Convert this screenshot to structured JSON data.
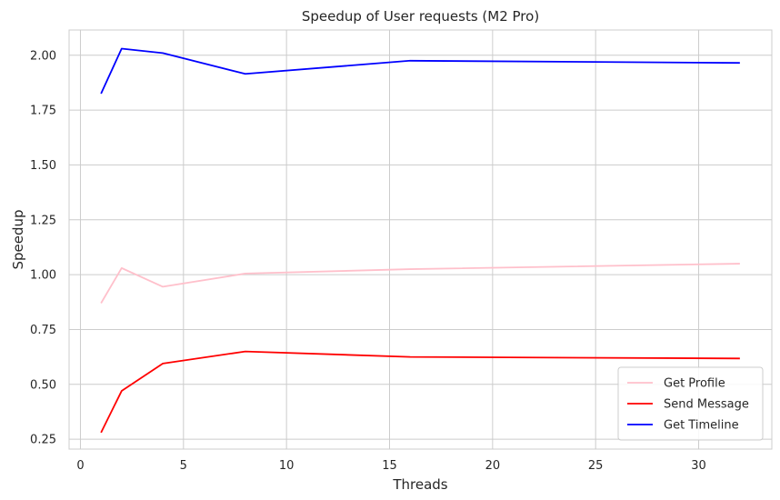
{
  "chart_data": {
    "type": "line",
    "title": "Speedup of User requests (M2 Pro)",
    "xlabel": "Threads",
    "ylabel": "Speedup",
    "xlim": [
      -0.55,
      33.55
    ],
    "ylim": [
      0.205,
      2.115
    ],
    "xticks": [
      0,
      5,
      10,
      15,
      20,
      25,
      30
    ],
    "xtick_labels": [
      "0",
      "5",
      "10",
      "15",
      "20",
      "25",
      "30"
    ],
    "yticks": [
      0.25,
      0.5,
      0.75,
      1.0,
      1.25,
      1.5,
      1.75,
      2.0
    ],
    "ytick_labels": [
      "0.25",
      "0.50",
      "0.75",
      "1.00",
      "1.25",
      "1.50",
      "1.75",
      "2.00"
    ],
    "grid": true,
    "legend_position": "lower-right",
    "x": [
      1,
      2,
      4,
      8,
      16,
      32
    ],
    "series": [
      {
        "name": "Get Profile",
        "color": "#ffc0cb",
        "values": [
          0.87,
          1.03,
          0.945,
          1.005,
          1.025,
          1.05
        ]
      },
      {
        "name": "Send Message",
        "color": "#ff0000",
        "values": [
          0.28,
          0.47,
          0.595,
          0.65,
          0.625,
          0.618
        ]
      },
      {
        "name": "Get Timeline",
        "color": "#0000ff",
        "values": [
          1.825,
          2.03,
          2.01,
          1.915,
          1.975,
          1.965
        ]
      }
    ]
  }
}
